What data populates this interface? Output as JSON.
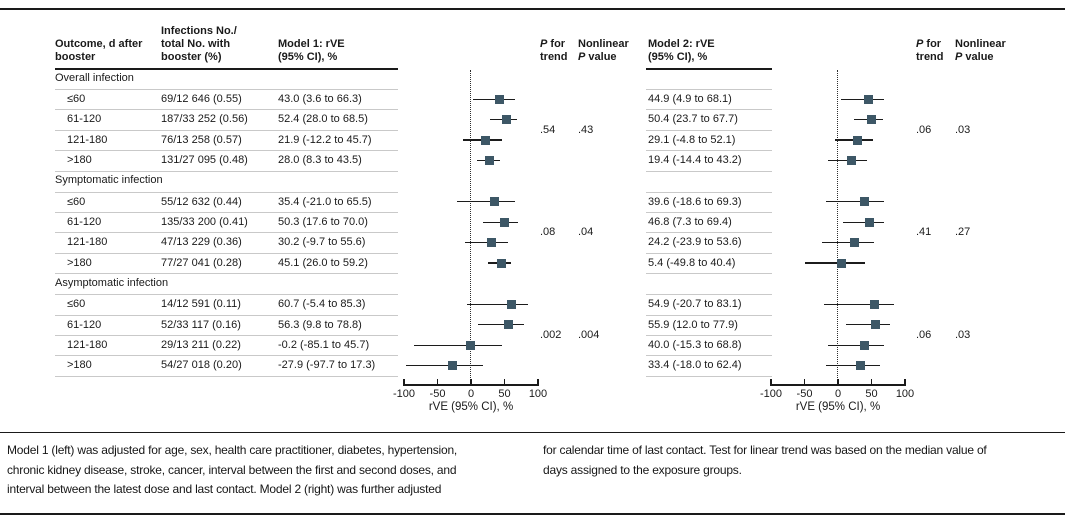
{
  "colors": {
    "marker": "#3d5766",
    "rule_dark": "#1a1a1a",
    "rule_light": "#c9c9c9",
    "text": "#1a1a1a"
  },
  "header": {
    "outcome": "Outcome, d after\nbooster",
    "infections": "Infections No./\ntotal No. with\nbooster (%)",
    "model1": "Model 1: rVE\n(95% CI), %",
    "model2": "Model 2: rVE\n(95% CI), %",
    "p_italic": "P",
    "p_for_rest": " for",
    "trend_word": "trend",
    "nonlinear_word": "Nonlinear",
    "p_value_rest": " value"
  },
  "axis": {
    "ticks": [
      "-100",
      "-50",
      "0",
      "50",
      "100"
    ],
    "label": "rVE (95% CI), %"
  },
  "sections": [
    {
      "label": "Overall infection",
      "p1_trend": ".54",
      "p1_nonlinear": ".43",
      "p2_trend": ".06",
      "p2_nonlinear": ".03",
      "rows": [
        {
          "outcome": "≤60",
          "infections": "69/12 646 (0.55)",
          "m1_text": "43.0 (3.6 to 66.3)",
          "m2_text": "44.9 (4.9 to 68.1)"
        },
        {
          "outcome": "61-120",
          "infections": "187/33 252 (0.56)",
          "m1_text": "52.4 (28.0 to 68.5)",
          "m2_text": "50.4 (23.7 to 67.7)"
        },
        {
          "outcome": "121-180",
          "infections": "76/13 258 (0.57)",
          "m1_text": "21.9 (-12.2 to 45.7)",
          "m2_text": "29.1 (-4.8 to 52.1)"
        },
        {
          "outcome": ">180",
          "infections": "131/27 095 (0.48)",
          "m1_text": "28.0 (8.3 to 43.5)",
          "m2_text": "19.4 (-14.4 to 43.2)"
        }
      ]
    },
    {
      "label": "Symptomatic infection",
      "p1_trend": ".08",
      "p1_nonlinear": ".04",
      "p2_trend": ".41",
      "p2_nonlinear": ".27",
      "rows": [
        {
          "outcome": "≤60",
          "infections": "55/12 632 (0.44)",
          "m1_text": "35.4 (-21.0 to 65.5)",
          "m2_text": "39.6 (-18.6 to 69.3)"
        },
        {
          "outcome": "61-120",
          "infections": "135/33 200 (0.41)",
          "m1_text": "50.3 (17.6 to 70.0)",
          "m2_text": "46.8 (7.3 to 69.4)"
        },
        {
          "outcome": "121-180",
          "infections": "47/13 229 (0.36)",
          "m1_text": "30.2 (-9.7 to 55.6)",
          "m2_text": "24.2 (-23.9 to 53.6)"
        },
        {
          "outcome": ">180",
          "infections": "77/27 041 (0.28)",
          "m1_text": "45.1 (26.0 to 59.2)",
          "m2_text": "5.4 (-49.8 to 40.4)"
        }
      ]
    },
    {
      "label": "Asymptomatic infection",
      "p1_trend": ".002",
      "p1_nonlinear": ".004",
      "p2_trend": ".06",
      "p2_nonlinear": ".03",
      "rows": [
        {
          "outcome": "≤60",
          "infections": "14/12 591 (0.11)",
          "m1_text": "60.7 (-5.4 to 85.3)",
          "m2_text": "54.9 (-20.7 to 83.1)"
        },
        {
          "outcome": "61-120",
          "infections": "52/33 117 (0.16)",
          "m1_text": "56.3 (9.8 to 78.8)",
          "m2_text": "55.9 (12.0 to 77.9)"
        },
        {
          "outcome": "121-180",
          "infections": "29/13 211 (0.22)",
          "m1_text": "-0.2 (-85.1 to 45.7)",
          "m2_text": "40.0 (-15.3 to 68.8)"
        },
        {
          "outcome": ">180",
          "infections": "54/27 018 (0.20)",
          "m1_text": "-27.9 (-97.7 to 17.3)",
          "m2_text": "33.4 (-18.0 to 62.4)"
        }
      ]
    }
  ],
  "footnotes": [
    "Model 1 (left) was adjusted for age, sex, health care practitioner, diabetes, hypertension,\nchronic kidney disease, stroke, cancer, interval between the first and second doses, and\ninterval between the latest dose and last contact. Model 2 (right) was further adjusted",
    "for calendar time of last contact. Test for linear trend was based on the median value of\ndays assigned to the exposure groups."
  ],
  "chart_data": {
    "type": "scatter",
    "variant": "forest-plot",
    "xlabel": "rVE (95% CI), %",
    "xlim": [
      -100,
      100
    ],
    "xticks": [
      -100,
      -50,
      0,
      50,
      100
    ],
    "reference_line_x": 0,
    "grid": false,
    "groups": [
      "Overall infection",
      "Symptomatic infection",
      "Asymptomatic infection"
    ],
    "categories_per_group": [
      "≤60",
      "61-120",
      "121-180",
      ">180"
    ],
    "series": [
      {
        "name": "Model 1: rVE (95% CI), %",
        "points": [
          {
            "group": "Overall infection",
            "category": "≤60",
            "est": 43.0,
            "lo": 3.6,
            "hi": 66.3
          },
          {
            "group": "Overall infection",
            "category": "61-120",
            "est": 52.4,
            "lo": 28.0,
            "hi": 68.5
          },
          {
            "group": "Overall infection",
            "category": "121-180",
            "est": 21.9,
            "lo": -12.2,
            "hi": 45.7
          },
          {
            "group": "Overall infection",
            "category": ">180",
            "est": 28.0,
            "lo": 8.3,
            "hi": 43.5
          },
          {
            "group": "Symptomatic infection",
            "category": "≤60",
            "est": 35.4,
            "lo": -21.0,
            "hi": 65.5
          },
          {
            "group": "Symptomatic infection",
            "category": "61-120",
            "est": 50.3,
            "lo": 17.6,
            "hi": 70.0
          },
          {
            "group": "Symptomatic infection",
            "category": "121-180",
            "est": 30.2,
            "lo": -9.7,
            "hi": 55.6
          },
          {
            "group": "Symptomatic infection",
            "category": ">180",
            "est": 45.1,
            "lo": 26.0,
            "hi": 59.2
          },
          {
            "group": "Asymptomatic infection",
            "category": "≤60",
            "est": 60.7,
            "lo": -5.4,
            "hi": 85.3
          },
          {
            "group": "Asymptomatic infection",
            "category": "61-120",
            "est": 56.3,
            "lo": 9.8,
            "hi": 78.8
          },
          {
            "group": "Asymptomatic infection",
            "category": "121-180",
            "est": -0.2,
            "lo": -85.1,
            "hi": 45.7
          },
          {
            "group": "Asymptomatic infection",
            "category": ">180",
            "est": -27.9,
            "lo": -97.7,
            "hi": 17.3
          }
        ],
        "p_for_trend": [
          ".54",
          ".08",
          ".002"
        ],
        "nonlinear_p": [
          ".43",
          ".04",
          ".004"
        ]
      },
      {
        "name": "Model 2: rVE (95% CI), %",
        "points": [
          {
            "group": "Overall infection",
            "category": "≤60",
            "est": 44.9,
            "lo": 4.9,
            "hi": 68.1
          },
          {
            "group": "Overall infection",
            "category": "61-120",
            "est": 50.4,
            "lo": 23.7,
            "hi": 67.7
          },
          {
            "group": "Overall infection",
            "category": "121-180",
            "est": 29.1,
            "lo": -4.8,
            "hi": 52.1
          },
          {
            "group": "Overall infection",
            "category": ">180",
            "est": 19.4,
            "lo": -14.4,
            "hi": 43.2
          },
          {
            "group": "Symptomatic infection",
            "category": "≤60",
            "est": 39.6,
            "lo": -18.6,
            "hi": 69.3
          },
          {
            "group": "Symptomatic infection",
            "category": "61-120",
            "est": 46.8,
            "lo": 7.3,
            "hi": 69.4
          },
          {
            "group": "Symptomatic infection",
            "category": "121-180",
            "est": 24.2,
            "lo": -23.9,
            "hi": 53.6
          },
          {
            "group": "Symptomatic infection",
            "category": ">180",
            "est": 5.4,
            "lo": -49.8,
            "hi": 40.4
          },
          {
            "group": "Asymptomatic infection",
            "category": "≤60",
            "est": 54.9,
            "lo": -20.7,
            "hi": 83.1
          },
          {
            "group": "Asymptomatic infection",
            "category": "61-120",
            "est": 55.9,
            "lo": 12.0,
            "hi": 77.9
          },
          {
            "group": "Asymptomatic infection",
            "category": "121-180",
            "est": 40.0,
            "lo": -15.3,
            "hi": 68.8
          },
          {
            "group": "Asymptomatic infection",
            "category": ">180",
            "est": 33.4,
            "lo": -18.0,
            "hi": 62.4
          }
        ],
        "p_for_trend": [
          ".06",
          ".41",
          ".06"
        ],
        "nonlinear_p": [
          ".03",
          ".27",
          ".03"
        ]
      }
    ]
  }
}
